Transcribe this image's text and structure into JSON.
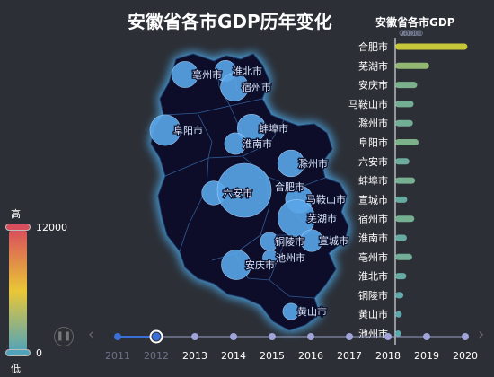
{
  "title": "安徽省各市GDP历年变化",
  "visual_map": {
    "high_label": "高",
    "low_label": "低",
    "max_value": "12000",
    "min_value": "0",
    "colors": [
      "#d94e5d",
      "#eac736",
      "#50a3ba"
    ]
  },
  "timeline": {
    "years": [
      "2011",
      "2012",
      "2013",
      "2014",
      "2015",
      "2016",
      "2017",
      "2018",
      "2019",
      "2020"
    ],
    "current_index": 1,
    "line_color": "#3a6fd8",
    "dot_color": "#a0a4d8"
  },
  "map_colors": {
    "region_fill": "#0b0f2a",
    "region_glow": "#4a9fd9",
    "bubble_color": "#59a6e8"
  },
  "map_cities": [
    {
      "name": "亳州市",
      "value": 1200
    },
    {
      "name": "淮北市",
      "value": 780
    },
    {
      "name": "宿州市",
      "value": 1350
    },
    {
      "name": "阜阳市",
      "value": 1650
    },
    {
      "name": "蚌埠市",
      "value": 1400
    },
    {
      "name": "淮南市",
      "value": 820
    },
    {
      "name": "滁州市",
      "value": 1250
    },
    {
      "name": "六安市",
      "value": 1000
    },
    {
      "name": "合肥市",
      "value": 5100
    },
    {
      "name": "马鞍山市",
      "value": 1300
    },
    {
      "name": "芜湖市",
      "value": 2400
    },
    {
      "name": "宣城市",
      "value": 850
    },
    {
      "name": "铜陵市",
      "value": 580
    },
    {
      "name": "池州市",
      "value": 410
    },
    {
      "name": "安庆市",
      "value": 1550
    },
    {
      "name": "黄山市",
      "value": 470
    }
  ],
  "chart_data": {
    "type": "bar",
    "title": "安徽省各市GDP",
    "axis_ticks": [
      "0",
      "2000",
      "4000",
      "6000"
    ],
    "categories": [
      "合肥市",
      "芜湖市",
      "安庆市",
      "马鞍山市",
      "滁州市",
      "阜阳市",
      "六安市",
      "蚌埠市",
      "宣城市",
      "宿州市",
      "淮南市",
      "亳州市",
      "淮北市",
      "铜陵市",
      "黄山市",
      "池州市"
    ],
    "values": [
      5100,
      2400,
      1550,
      1300,
      1250,
      1650,
      1000,
      1400,
      850,
      1350,
      820,
      1200,
      780,
      580,
      470,
      410
    ],
    "xlim": [
      0,
      5200
    ],
    "color_range": [
      0,
      12000
    ]
  }
}
